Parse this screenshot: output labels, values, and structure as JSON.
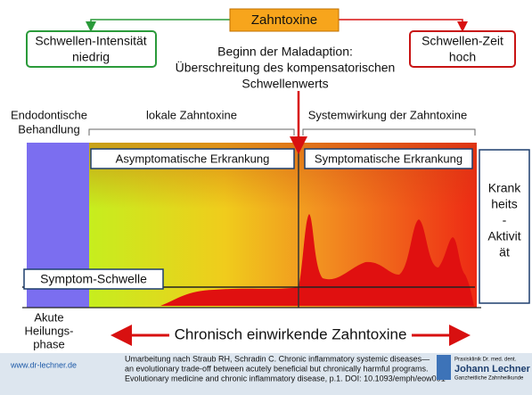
{
  "header": {
    "title": "Zahntoxine",
    "left_box": [
      "Schwellen-Intensität",
      "niedrig"
    ],
    "right_box": [
      "Schwellen-Zeit",
      "hoch"
    ]
  },
  "annotation": [
    "Beginn der Maladaption:",
    "Überschreitung des kompensatorischen",
    "Schwellenwerts"
  ],
  "labels": {
    "treatment": [
      "Endodontische",
      "Behandlung"
    ],
    "local": "lokale Zahntoxine",
    "systemic": "Systemwirkung der Zahntoxine",
    "asymptomatic": "Asymptomatische Erkrankung",
    "symptomatic": "Symptomatische Erkrankung",
    "activity": [
      "Krank",
      "heits",
      "-",
      "Aktivit",
      "ät"
    ],
    "threshold": "Symptom-Schwelle",
    "healing": [
      "Akute",
      "Heilungs-",
      "phase"
    ],
    "chronic": "Chronisch einwirkende Zahntoxine"
  },
  "footer": {
    "website": "www.dr-lechner.de",
    "citation": [
      "Umarbeitung nach Straub RH, Schradin C. Chronic inflammatory systemic diseases—",
      "an evolutionary trade-off between acutely beneficial but chronically harmful programs.",
      "Evolutionary medicine and chronic inflammatory disease, p.1. DOI: 10.1093/emph/eow001"
    ],
    "logo": [
      "Praxisklinik Dr. med. dent.",
      "Johann Lechner",
      "Ganzheitliche Zahnheilkunde"
    ]
  }
}
